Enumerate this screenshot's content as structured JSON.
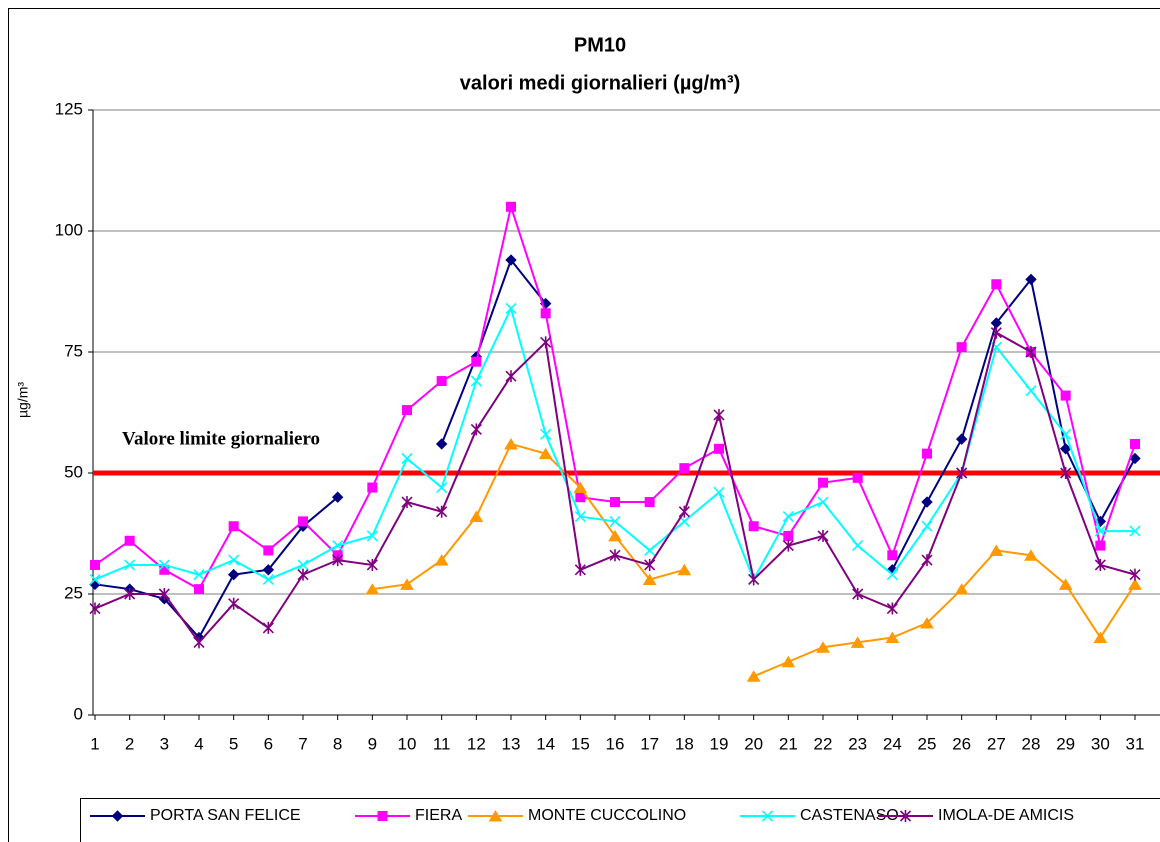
{
  "chart_data": {
    "type": "line",
    "title": "PM10",
    "subtitle": "valori medi giornalieri (µg/m³)",
    "y_label": "µg/m³",
    "annotation": "Valore limite giornaliero",
    "limit": 50,
    "limit_color": "#ff0000",
    "categories": [
      "1",
      "2",
      "3",
      "4",
      "5",
      "6",
      "7",
      "8",
      "9",
      "10",
      "11",
      "12",
      "13",
      "14",
      "15",
      "16",
      "17",
      "18",
      "19",
      "20",
      "21",
      "22",
      "23",
      "24",
      "25",
      "26",
      "27",
      "28",
      "29",
      "30",
      "31"
    ],
    "ylim": [
      0,
      125
    ],
    "yticks": [
      0,
      25,
      50,
      75,
      100,
      125
    ],
    "grid": true,
    "legend": "bottom",
    "series": [
      {
        "name": "PORTA SAN FELICE",
        "color": "#000080",
        "marker": "diamond",
        "values": [
          27,
          26,
          24,
          16,
          29,
          30,
          39,
          45,
          null,
          null,
          56,
          74,
          94,
          85,
          null,
          null,
          null,
          null,
          null,
          null,
          null,
          null,
          null,
          30,
          44,
          57,
          81,
          90,
          55,
          40,
          53
        ]
      },
      {
        "name": "FIERA",
        "color": "#ff00ff",
        "marker": "square",
        "values": [
          31,
          36,
          30,
          26,
          39,
          34,
          40,
          33,
          47,
          63,
          69,
          73,
          105,
          83,
          45,
          44,
          44,
          51,
          55,
          39,
          37,
          48,
          49,
          33,
          54,
          76,
          89,
          75,
          66,
          35,
          56
        ]
      },
      {
        "name": "MONTE CUCCOLINO",
        "color": "#ff9900",
        "marker": "triangle",
        "values": [
          null,
          null,
          null,
          null,
          null,
          null,
          null,
          null,
          26,
          27,
          32,
          41,
          56,
          54,
          47,
          37,
          28,
          30,
          null,
          8,
          11,
          14,
          15,
          16,
          19,
          26,
          34,
          33,
          27,
          16,
          27
        ]
      },
      {
        "name": "CASTENASO",
        "color": "#00ffff",
        "marker": "x",
        "values": [
          28,
          31,
          31,
          29,
          32,
          28,
          31,
          35,
          37,
          53,
          47,
          69,
          84,
          58,
          41,
          40,
          34,
          40,
          46,
          28,
          41,
          44,
          35,
          29,
          39,
          50,
          76,
          67,
          58,
          38,
          38
        ]
      },
      {
        "name": "IMOLA-DE AMICIS",
        "color": "#800080",
        "marker": "star",
        "values": [
          22,
          25,
          25,
          15,
          23,
          18,
          29,
          32,
          31,
          44,
          42,
          59,
          70,
          77,
          30,
          33,
          31,
          42,
          62,
          28,
          35,
          37,
          25,
          22,
          32,
          50,
          79,
          75,
          50,
          31,
          29
        ]
      }
    ]
  }
}
